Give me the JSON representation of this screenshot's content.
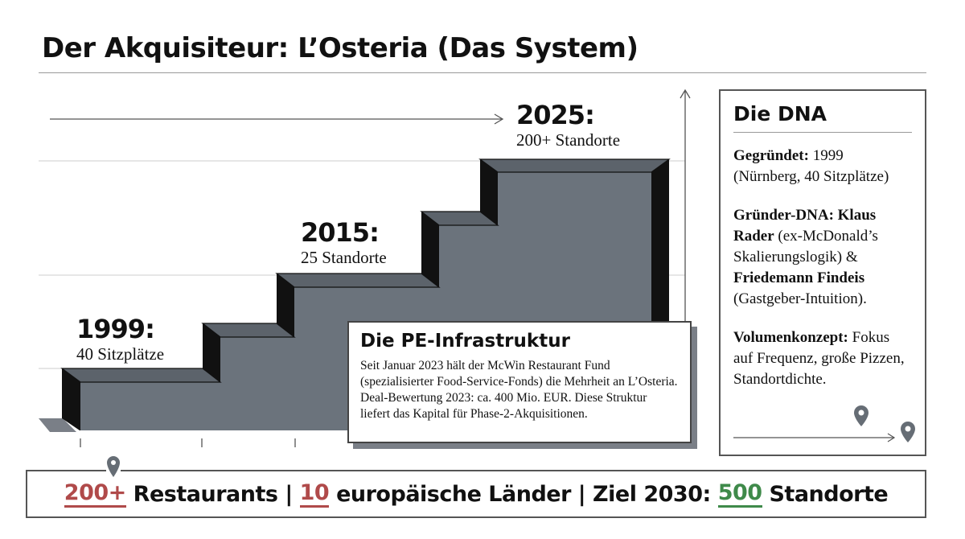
{
  "title": "Der Akquisiteur: L’Osteria (Das System)",
  "steps": [
    {
      "year": "1999:",
      "label": "40 Sitzplätze"
    },
    {
      "year": "2015:",
      "label": "25 Standorte"
    },
    {
      "year": "2025:",
      "label": "200+ Standorte"
    }
  ],
  "pe_box": {
    "title": "Die PE-Infrastruktur",
    "text": "Seit Januar 2023 hält der McWin Restaurant Fund (spezialisierter Food-Service-Fonds) die Mehrheit an L’Osteria. Deal-Bewertung 2023: ca. 400 Mio. EUR. Diese Struktur liefert das Kapital für Phase-2-Akquisitionen."
  },
  "dna": {
    "title": "Die DNA",
    "founded_label": "Gegründet:",
    "founded_value": " 1999 (Nürnberg, 40 Sitzplätze)",
    "founder_label": "Gründer-DNA:",
    "founder1": " Klaus Rader",
    "founder1_note": " (ex-McDonald’s Skalierungslogik) & ",
    "founder2": "Friedemann Findeis",
    "founder2_note": " (Gastgeber-Intuition).",
    "concept_label": "Volumenkonzept:",
    "concept_value": " Fokus auf Frequenz, große Pizzen, Standortdichte."
  },
  "bottom": {
    "v1": "200+",
    "t1": " Restaurants | ",
    "v2": "10",
    "t2": " europäische Länder | Ziel 2030: ",
    "v3": "500",
    "t3": " Standorte"
  },
  "colors": {
    "step_fill": "#6b737c",
    "accent_red": "#b04a4a",
    "accent_green": "#3f8a4a"
  },
  "icons": [
    "map-pin-icon",
    "arrow-right-icon",
    "arrow-up-icon"
  ]
}
